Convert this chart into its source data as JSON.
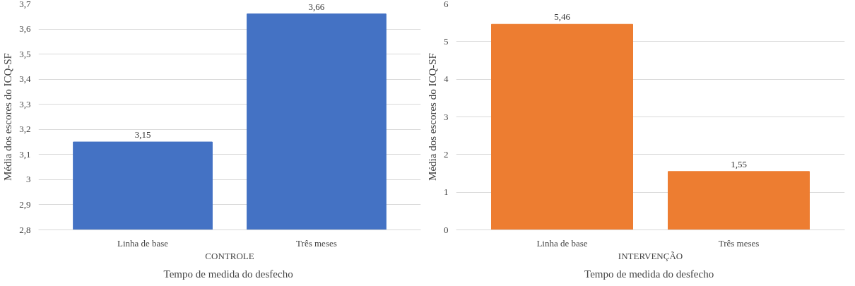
{
  "chart_data": [
    {
      "type": "bar",
      "categories": [
        "Linha de base",
        "Três meses"
      ],
      "values": [
        3.15,
        3.66
      ],
      "color": "#4472c4",
      "value_labels": [
        "3,15",
        "3,66"
      ],
      "xlabel": "Tempo  de medida do desfecho",
      "ylabel": "Média dos escores do ICQ-SF",
      "annotations": [
        "CONTROLE"
      ],
      "ylim": [
        2.8,
        3.7
      ],
      "yticks": [
        {
          "value": 2.8,
          "label": "2,8"
        },
        {
          "value": 2.9,
          "label": "2,9"
        },
        3,
        {
          "value": 3.1,
          "label": "3,1"
        },
        {
          "value": 3.2,
          "label": "3,2"
        },
        {
          "value": 3.3,
          "label": "3,3"
        },
        {
          "value": 3.4,
          "label": "3,4"
        },
        {
          "value": 3.5,
          "label": "3,5"
        },
        {
          "value": 3.6,
          "label": "3,6"
        },
        {
          "value": 3.7,
          "label": "3,7"
        }
      ],
      "grid": "y"
    },
    {
      "type": "bar",
      "categories": [
        "Linha de base",
        "Três meses"
      ],
      "values": [
        5.46,
        1.55
      ],
      "color": "#ed7d31",
      "value_labels": [
        "5,46",
        "1,55"
      ],
      "xlabel": "Tempo  de medida do desfecho",
      "ylabel": "Média dos escores do ICQ-SF",
      "annotations": [
        "INTERVENÇÃO"
      ],
      "ylim": [
        0,
        6
      ],
      "yticks": [
        0,
        1,
        2,
        3,
        4,
        5,
        6
      ],
      "grid": "y"
    }
  ]
}
